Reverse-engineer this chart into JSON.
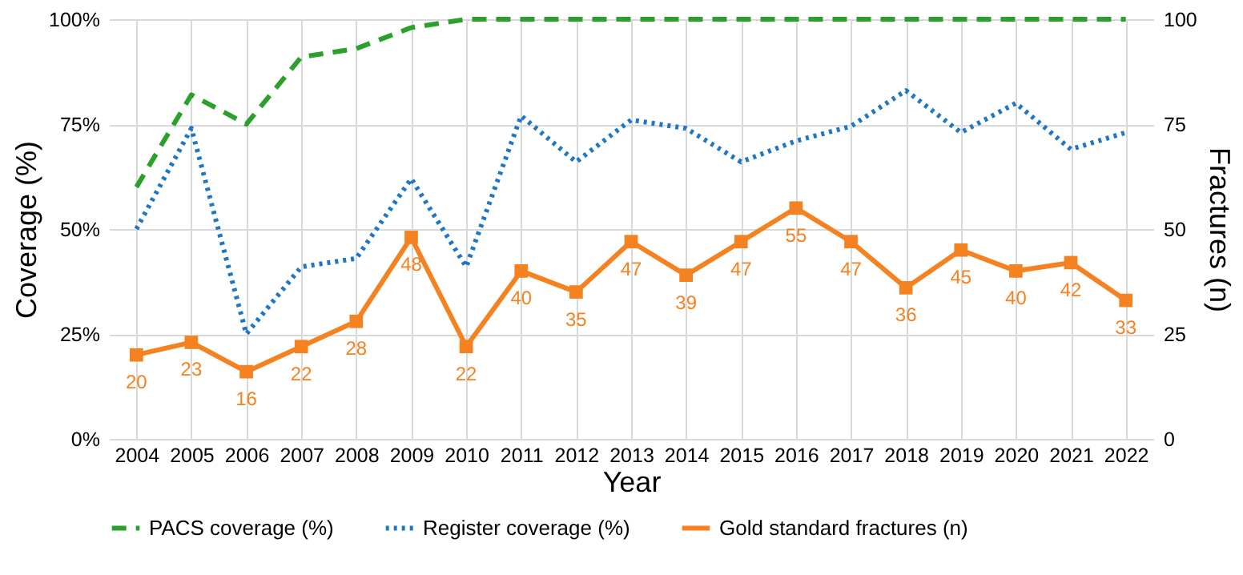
{
  "chart_data": {
    "type": "line",
    "xlabel": "Year",
    "ylabel": "Coverage (%)",
    "y2label": "Fractures (n)",
    "categories": [
      "2004",
      "2005",
      "2006",
      "2007",
      "2008",
      "2009",
      "2010",
      "2011",
      "2012",
      "2013",
      "2014",
      "2015",
      "2016",
      "2017",
      "2018",
      "2019",
      "2020",
      "2021",
      "2022"
    ],
    "series": [
      {
        "name": "PACS coverage (%)",
        "color": "#2ca02c",
        "line_style": "dashed",
        "marker": "none",
        "values": [
          60,
          82,
          75,
          91,
          93,
          98,
          100,
          100,
          100,
          100,
          100,
          100,
          100,
          100,
          100,
          100,
          100,
          100,
          100
        ]
      },
      {
        "name": "Register coverage (%)",
        "color": "#1f77c4",
        "line_style": "dotted",
        "marker": "none",
        "values": [
          50,
          74,
          25,
          41,
          43,
          62,
          41,
          77,
          66,
          76,
          74,
          66,
          71,
          74.5,
          83,
          73,
          80,
          69,
          73
        ]
      },
      {
        "name": "Gold standard fractures (n)",
        "color": "#f58220",
        "line_style": "solid",
        "marker": "square",
        "axis": "y2",
        "values": [
          20,
          23,
          16,
          22,
          28,
          48,
          22,
          40,
          35,
          47,
          39,
          47,
          55,
          47,
          36,
          45,
          40,
          42,
          33
        ],
        "value_labels": [
          "20",
          "23",
          "16",
          "22",
          "28",
          "48",
          "22",
          "40",
          "35",
          "47",
          "39",
          "47",
          "55",
          "47",
          "36",
          "45",
          "40",
          "42",
          "33"
        ]
      }
    ],
    "ylim": [
      0,
      100
    ],
    "yticks": [
      {
        "value": 0,
        "label": "0%"
      },
      {
        "value": 25,
        "label": "25%"
      },
      {
        "value": 50,
        "label": "50%"
      },
      {
        "value": 75,
        "label": "75%"
      },
      {
        "value": 100,
        "label": "100%"
      }
    ],
    "y2lim": [
      0,
      100
    ],
    "y2ticks": [
      0,
      25,
      50,
      75,
      100
    ],
    "grid": true,
    "legend": "bottom"
  }
}
